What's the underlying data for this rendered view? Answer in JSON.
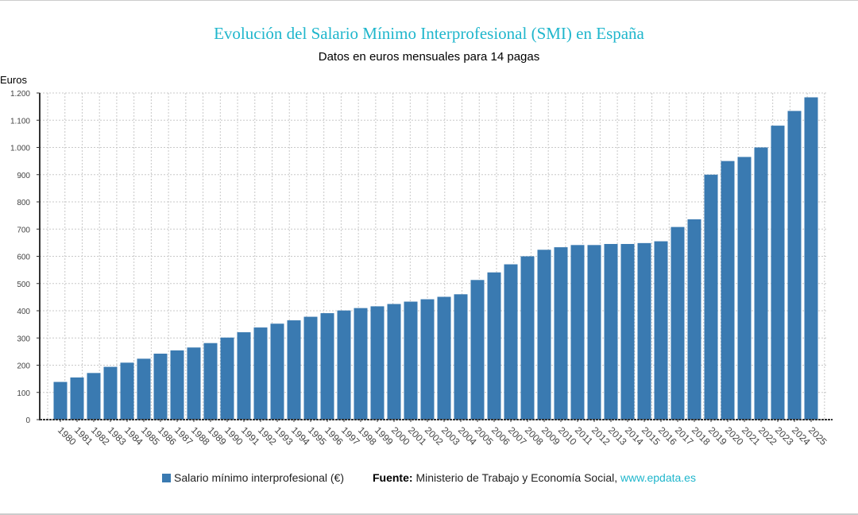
{
  "chart_data": {
    "type": "bar",
    "title": "Evolución del Salario Mínimo Interprofesional (SMI) en España",
    "subtitle": "Datos en euros mensuales para 14 pagas",
    "ylabel": "Euros",
    "xlabel": "",
    "ylim": [
      0,
      1200
    ],
    "yticks": [
      0,
      100,
      200,
      300,
      400,
      500,
      600,
      700,
      800,
      900,
      1000,
      1100,
      1200
    ],
    "ytick_labels": [
      "0",
      "100",
      "200",
      "300",
      "400",
      "500",
      "600",
      "700",
      "800",
      "900",
      "1.000",
      "1.100",
      "1.200"
    ],
    "grid": true,
    "legend_position": "bottom",
    "bar_color": "#3a7ab1",
    "categories": [
      "1980",
      "1981",
      "1982",
      "1983",
      "1984",
      "1985",
      "1986",
      "1987",
      "1988",
      "1989",
      "1990",
      "1991",
      "1992",
      "1993",
      "1994",
      "1995",
      "1996",
      "1997",
      "1998",
      "1999",
      "2000",
      "2001",
      "2002",
      "2003",
      "2004",
      "2005",
      "2006",
      "2007",
      "2008",
      "2009",
      "2010",
      "2011",
      "2012",
      "2013",
      "2014",
      "2015",
      "2016",
      "2017",
      "2018",
      "2019",
      "2020",
      "2021",
      "2022",
      "2023",
      "2024",
      "2025"
    ],
    "series": [
      {
        "name": "Salario mínimo interprofesional (€)",
        "values": [
          138.5,
          154.9,
          171.3,
          193.9,
          209.3,
          223.8,
          242.4,
          254.4,
          265.0,
          281.2,
          301.5,
          321.0,
          338.5,
          352.5,
          364.8,
          377.9,
          391.1,
          401.0,
          409.8,
          416.3,
          424.8,
          433.5,
          442.2,
          451.2,
          460.5,
          513.0,
          540.9,
          570.6,
          600.0,
          624.0,
          633.3,
          641.4,
          641.4,
          645.3,
          645.3,
          648.6,
          655.2,
          707.7,
          735.9,
          900,
          950,
          965,
          1000,
          1080,
          1134,
          1184
        ]
      }
    ]
  },
  "legend": {
    "label": "Salario mínimo interprofesional (€)"
  },
  "source": {
    "prefix": "Fuente:",
    "text": "Ministerio de Trabajo y Economía Social,",
    "link": "www.epdata.es"
  }
}
